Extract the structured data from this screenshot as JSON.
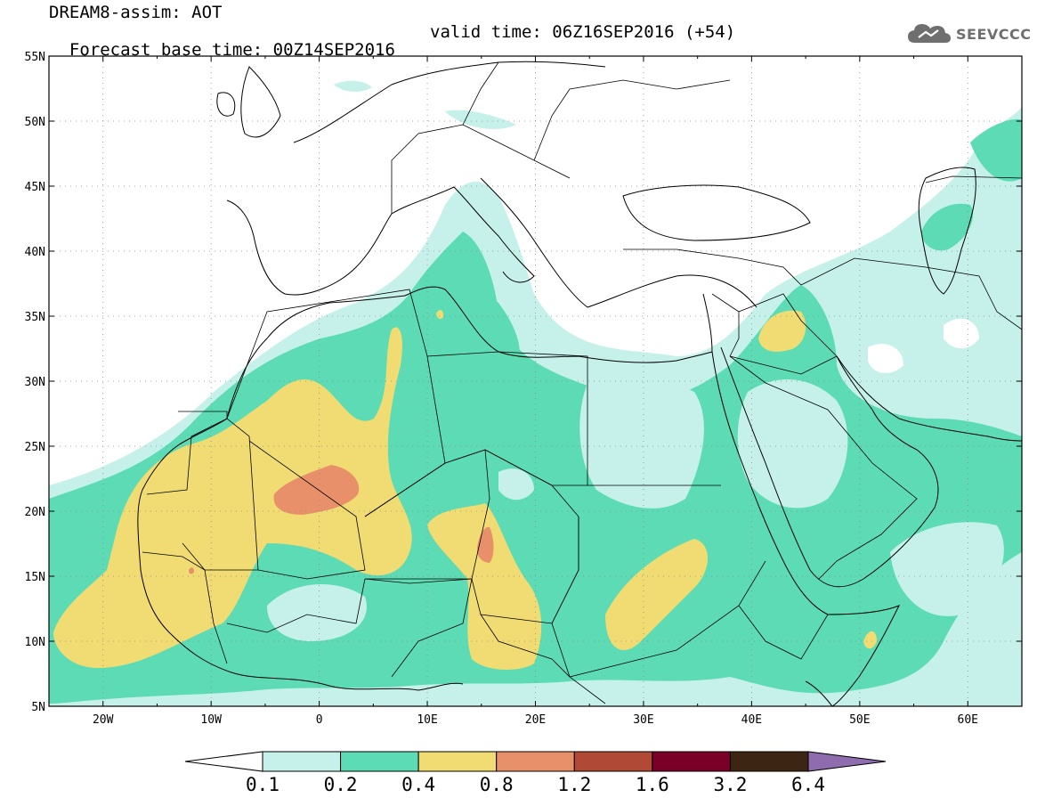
{
  "title": {
    "line1": "DREAM8-assim: AOT",
    "base_time": "Forecast base time: 00Z14SEP2016",
    "valid_time": "valid time: 06Z16SEP2016 (+54)"
  },
  "logo": {
    "text": "SEEVCCC",
    "icon": "cloud-icon",
    "color": "#6f6f6f"
  },
  "map": {
    "lon_range": [
      -25,
      65
    ],
    "lat_range": [
      5,
      55
    ],
    "lat_ticks": [
      {
        "value": 55,
        "label": "55N"
      },
      {
        "value": 50,
        "label": "50N"
      },
      {
        "value": 45,
        "label": "45N"
      },
      {
        "value": 40,
        "label": "40N"
      },
      {
        "value": 35,
        "label": "35N"
      },
      {
        "value": 30,
        "label": "30N"
      },
      {
        "value": 25,
        "label": "25N"
      },
      {
        "value": 20,
        "label": "20N"
      },
      {
        "value": 15,
        "label": "15N"
      },
      {
        "value": 10,
        "label": "10N"
      },
      {
        "value": 5,
        "label": "5N"
      }
    ],
    "lon_ticks": [
      {
        "value": -20,
        "label": "20W"
      },
      {
        "value": -10,
        "label": "10W"
      },
      {
        "value": 0,
        "label": "0"
      },
      {
        "value": 10,
        "label": "10E"
      },
      {
        "value": 20,
        "label": "20E"
      },
      {
        "value": 30,
        "label": "30E"
      },
      {
        "value": 40,
        "label": "40E"
      },
      {
        "value": 50,
        "label": "50E"
      },
      {
        "value": 60,
        "label": "60E"
      }
    ],
    "gridlines": "dotted"
  },
  "colorbar": {
    "labels": [
      "0.1",
      "0.2",
      "0.4",
      "0.8",
      "1.2",
      "1.6",
      "3.2",
      "6.4"
    ],
    "colors": [
      "#ffffff",
      "#c6f1ea",
      "#5cdbb4",
      "#f1dc73",
      "#e8906a",
      "#b04a37",
      "#7a0028",
      "#3c2512",
      "#8e6cad"
    ]
  }
}
